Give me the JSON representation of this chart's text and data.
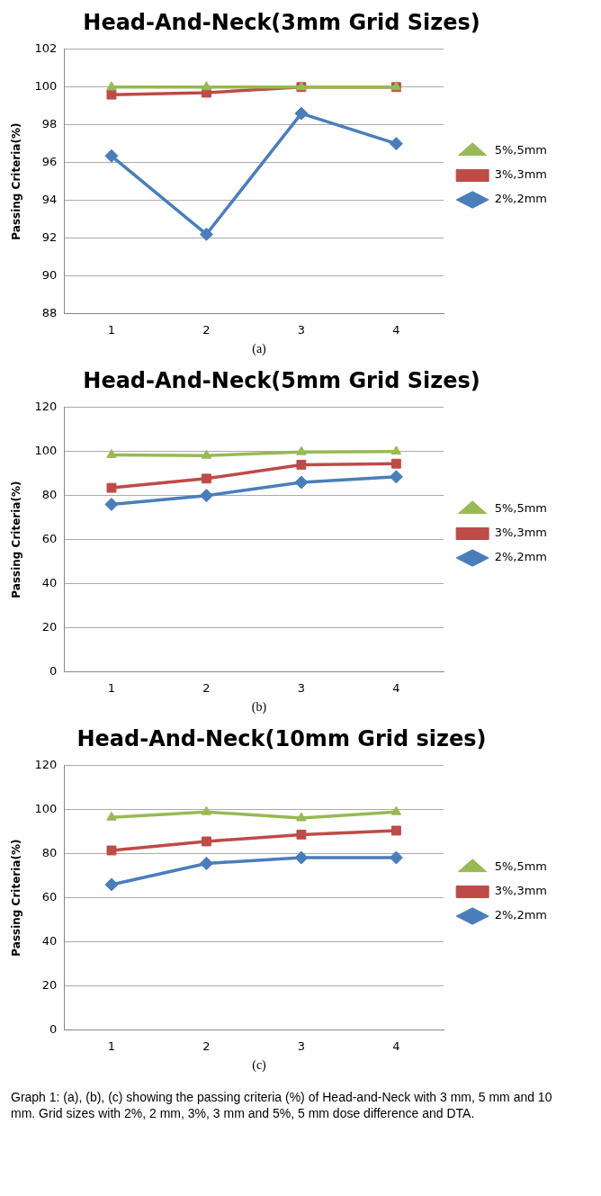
{
  "chart_data": [
    {
      "type": "line",
      "title": "Head-And-Neck(3mm Grid Sizes)",
      "ylabel": "Passing Criteria(%)",
      "categories": [
        "1",
        "2",
        "3",
        "4"
      ],
      "ylim": [
        88,
        102
      ],
      "yticks": [
        88,
        90,
        92,
        94,
        96,
        98,
        100,
        102
      ],
      "grid": "y",
      "legend": "right",
      "annotations": [
        "(a)"
      ],
      "series": [
        {
          "name": "2%,2mm",
          "color": "#4a7ebb",
          "marker": "diamond",
          "values": [
            96.35,
            92.2,
            98.6,
            97.0
          ]
        },
        {
          "name": "3%,3mm",
          "color": "#be4b48",
          "marker": "square",
          "values": [
            99.6,
            99.7,
            100,
            100
          ]
        },
        {
          "name": "5%,5mm",
          "color": "#98b954",
          "marker": "triangle",
          "values": [
            100,
            100,
            100,
            100
          ]
        }
      ]
    },
    {
      "type": "line",
      "title": "Head-And-Neck(5mm Grid Sizes)",
      "ylabel": "Passing Criteria(%)",
      "categories": [
        "1",
        "2",
        "3",
        "4"
      ],
      "ylim": [
        0,
        120
      ],
      "yticks": [
        0,
        20,
        40,
        60,
        80,
        100,
        120
      ],
      "grid": "y",
      "legend": "right",
      "annotations": [
        "(b)"
      ],
      "series": [
        {
          "name": "2%,2mm",
          "color": "#4a7ebb",
          "marker": "diamond",
          "values": [
            76,
            80,
            86,
            88.5
          ]
        },
        {
          "name": "3%,3mm",
          "color": "#be4b48",
          "marker": "square",
          "values": [
            83.5,
            87.7,
            94,
            94.5
          ]
        },
        {
          "name": "5%,5mm",
          "color": "#98b954",
          "marker": "triangle",
          "values": [
            98.5,
            98.2,
            99.8,
            100
          ]
        }
      ]
    },
    {
      "type": "line",
      "title": "Head-And-Neck(10mm Grid sizes)",
      "ylabel": "Passing Criteria(%)",
      "categories": [
        "1",
        "2",
        "3",
        "4"
      ],
      "ylim": [
        0,
        120
      ],
      "yticks": [
        0,
        20,
        40,
        60,
        80,
        100,
        120
      ],
      "grid": "y",
      "legend": "right",
      "annotations": [
        "(c)",
        "Graph 1: (a), (b), (c) showing the passing criteria (%) of Head-and-Neck with 3 mm, 5 mm and 10 mm. Grid sizes with 2%, 2 mm, 3%, 3 mm and 5%, 5 mm dose difference and DTA."
      ],
      "series": [
        {
          "name": "2%,2mm",
          "color": "#4a7ebb",
          "marker": "diamond",
          "values": [
            66,
            75.6,
            78.2,
            78.2
          ]
        },
        {
          "name": "3%,3mm",
          "color": "#be4b48",
          "marker": "square",
          "values": [
            81.5,
            85.6,
            88.7,
            90.5
          ]
        },
        {
          "name": "5%,5mm",
          "color": "#98b954",
          "marker": "triangle",
          "values": [
            96.5,
            99,
            96.2,
            99
          ]
        }
      ]
    }
  ]
}
